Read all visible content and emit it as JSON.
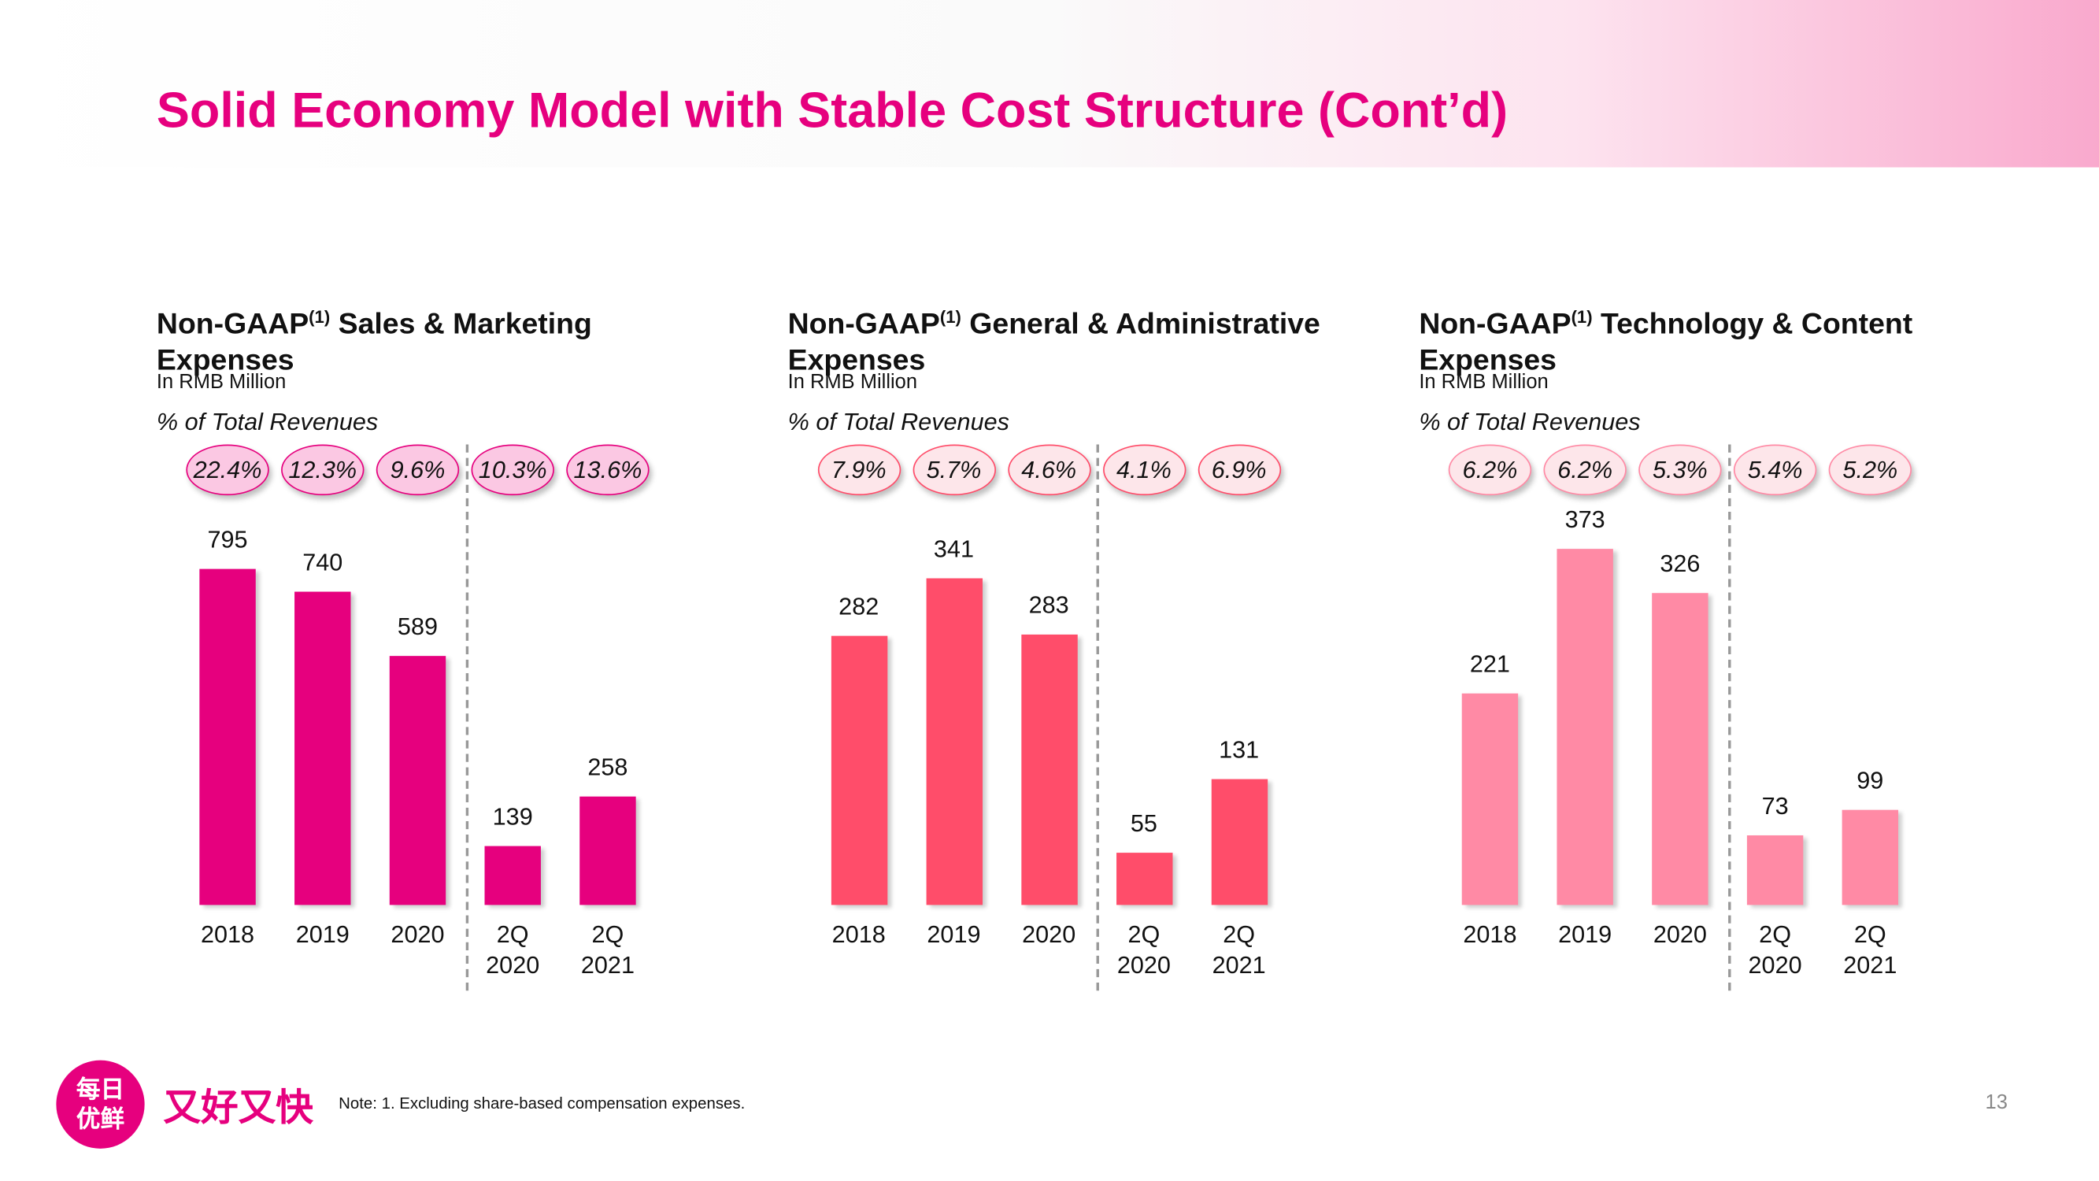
{
  "page_title": "Solid Economy Model with Stable Cost Structure (Cont’d)",
  "chart_data": [
    {
      "type": "bar",
      "title_parts": [
        "Non-GAAP",
        "(1)",
        "Sales & Marketing Expenses"
      ],
      "subtitle": "In RMB Million",
      "pct_title": "% of Total Revenues",
      "pct_values": [
        22.4,
        12.3,
        9.6,
        10.3,
        13.6
      ],
      "pct_value_labels": [
        "22.4%",
        "12.3%",
        "9.6%",
        "10.3%",
        "13.6%"
      ],
      "categories": [
        "2018",
        "2019",
        "2020",
        "2Q 2020",
        "2Q 2021"
      ],
      "values": [
        795,
        740,
        589,
        139,
        258
      ],
      "color": "#e6007e",
      "ylim": [
        0,
        950
      ]
    },
    {
      "type": "bar",
      "title_parts": [
        "Non-GAAP",
        "(1)",
        "General & Administrative Expenses"
      ],
      "subtitle": "In RMB Million",
      "pct_title": "% of Total Revenues",
      "pct_values": [
        7.9,
        5.7,
        4.6,
        4.1,
        6.9
      ],
      "pct_value_labels": [
        "7.9%",
        "5.7%",
        "4.6%",
        "4.1%",
        "6.9%"
      ],
      "categories": [
        "2018",
        "2019",
        "2020",
        "2Q 2020",
        "2Q 2021"
      ],
      "values": [
        282,
        341,
        283,
        55,
        131
      ],
      "color": "#ff4d6a",
      "ylim": [
        0,
        420
      ]
    },
    {
      "type": "bar",
      "title_parts": [
        "Non-GAAP",
        "(1)",
        "Technology & Content Expenses"
      ],
      "subtitle": "In RMB Million",
      "pct_title": "% of Total Revenues",
      "pct_values": [
        6.2,
        6.2,
        5.3,
        5.4,
        5.2
      ],
      "pct_value_labels": [
        "6.2%",
        "6.2%",
        "5.3%",
        "5.4%",
        "5.2%"
      ],
      "categories": [
        "2018",
        "2019",
        "2020",
        "2Q 2020",
        "2Q 2021"
      ],
      "values": [
        221,
        373,
        326,
        73,
        99
      ],
      "color": "#ff8aa5",
      "ylim": [
        0,
        420
      ]
    }
  ],
  "footer": {
    "logo": "每日优鲜",
    "slogan": "又好又快",
    "note": "Note: 1. Excluding share-based compensation expenses.",
    "page_number": "13"
  }
}
